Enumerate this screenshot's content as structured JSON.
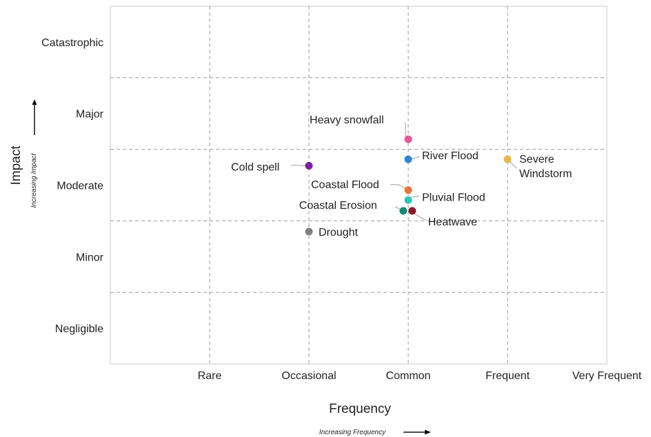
{
  "chart_data": {
    "type": "scatter",
    "xlabel": "Frequency",
    "xlabel_sub": "Increasing Frequency",
    "ylabel": "Impact",
    "ylabel_sub": "Increasing Impact",
    "x_categories": [
      "Rare",
      "Occasional",
      "Common",
      "Frequent",
      "Very Frequent"
    ],
    "y_categories": [
      "Negligible",
      "Minor",
      "Moderate",
      "Major",
      "Catastrophic"
    ],
    "xlim": [
      0,
      5
    ],
    "ylim": [
      0,
      5
    ],
    "grid": true,
    "points": [
      {
        "name": "Heavy snowfall",
        "x": 3.0,
        "y": 3.14,
        "color": "#e8559b"
      },
      {
        "name": "River Flood",
        "x": 3.0,
        "y": 2.86,
        "color": "#2f86d8"
      },
      {
        "name": "Cold spell",
        "x": 2.0,
        "y": 2.77,
        "color": "#7b1fa2"
      },
      {
        "name": "Severe Windstorm",
        "x": 4.0,
        "y": 2.86,
        "color": "#e9b949"
      },
      {
        "name": "Coastal Flood",
        "x": 3.0,
        "y": 2.43,
        "color": "#e8743b"
      },
      {
        "name": "Pluvial Flood",
        "x": 3.0,
        "y": 2.29,
        "color": "#2ec4b6"
      },
      {
        "name": "Coastal Erosion",
        "x": 2.95,
        "y": 2.14,
        "color": "#138a72"
      },
      {
        "name": "Heatwave",
        "x": 3.04,
        "y": 2.14,
        "color": "#8b1a2b"
      },
      {
        "name": "Drought",
        "x": 2.0,
        "y": 1.85,
        "color": "#808080"
      }
    ]
  }
}
